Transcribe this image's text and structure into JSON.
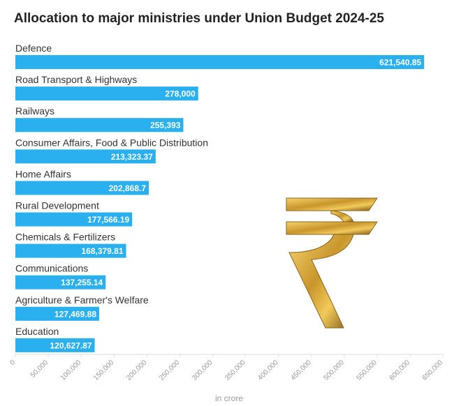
{
  "chart_data": {
    "type": "bar",
    "orientation": "horizontal",
    "title": "Allocation to major ministries under Union Budget 2024-25",
    "xlabel": "in crore",
    "ylabel": "",
    "categories": [
      "Defence",
      "Road Transport & Highways",
      "Railways",
      "Consumer Affairs, Food & Public Distribution",
      "Home Affairs",
      "Rural Development",
      "Chemicals & Fertilizers",
      "Communications",
      "Agriculture & Farmer's Welfare",
      "Education"
    ],
    "values": [
      621540.85,
      278000,
      255393,
      213323.37,
      202868.7,
      177566.19,
      168379.81,
      137255.14,
      127469.88,
      120627.87
    ],
    "value_labels": [
      "621,540.85",
      "278,000",
      "255,393",
      "213,323.37",
      "202,868.7",
      "177,566.19",
      "168,379.81",
      "137,255.14",
      "127,469.88",
      "120,627.87"
    ],
    "xlim": [
      0,
      650000
    ],
    "ticks": [
      0,
      50000,
      100000,
      150000,
      200000,
      250000,
      300000,
      350000,
      400000,
      450000,
      500000,
      550000,
      600000,
      650000
    ],
    "tick_labels": [
      "0",
      "50,000",
      "100,000",
      "150,000",
      "200,000",
      "250,000",
      "300,000",
      "350,000",
      "400,000",
      "450,000",
      "500,000",
      "550,000",
      "600,000",
      "650,000"
    ],
    "grid": false,
    "colors": {
      "bar": "#2ab0ef",
      "value_text": "#ffffff",
      "axis": "#dddddd",
      "tick_text": "#999999"
    }
  },
  "decoration": {
    "icon": "rupee-symbol-icon",
    "colors": [
      "#f6d36b",
      "#c8962c",
      "#7a5512"
    ]
  }
}
